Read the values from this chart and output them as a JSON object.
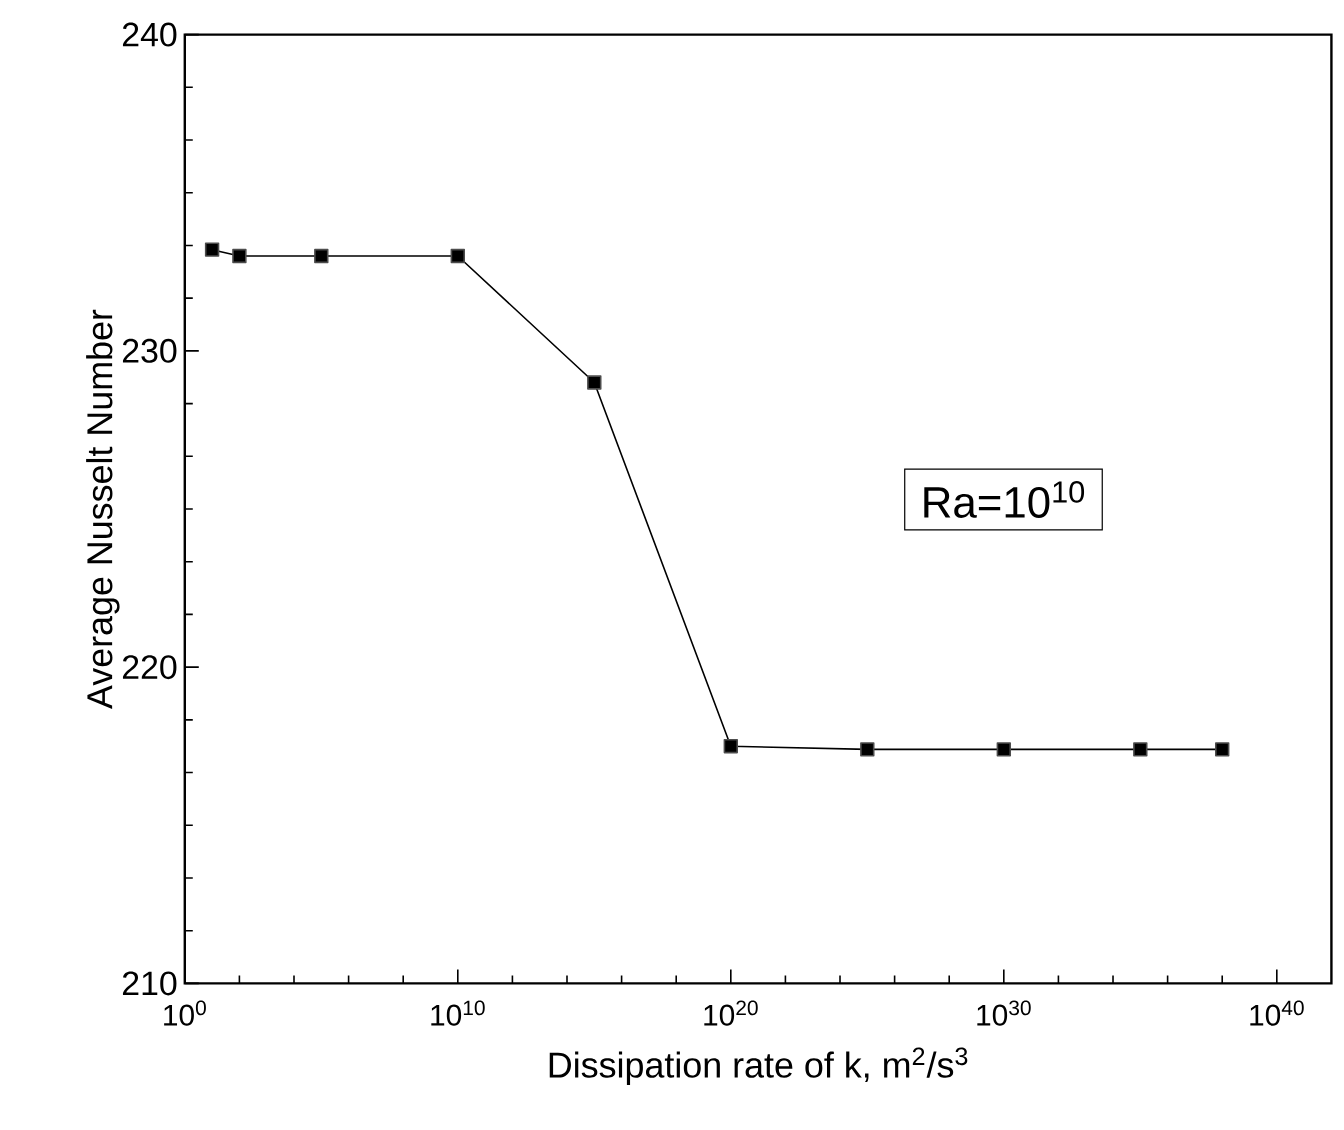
{
  "chart_data": {
    "type": "line",
    "xlabel": "Dissipation rate of k, m$^{2}$/s$^{3}$",
    "ylabel": "Average Nusselt Number",
    "x": [
      10.0,
      100.0,
      100000.0,
      10000000000.0,
      1000000000000000.0,
      1e+20,
      1e+25,
      1e+30,
      1e+35,
      1e+38
    ],
    "series": [
      {
        "color": "#000000",
        "values": [
          233.2,
          233.0,
          233.0,
          233.0,
          229.0,
          217.5,
          217.4,
          217.4,
          217.4,
          217.4
        ]
      }
    ],
    "log": "x",
    "xlim": [
      1,
      1e+42
    ],
    "ylim": [
      210,
      240
    ],
    "xticks": [
      {
        "value": 1,
        "label": "10$^{0}$"
      },
      {
        "value": 10000000000.0,
        "label": "10$^{10}$"
      },
      {
        "value": 1e+20,
        "label": "10$^{20}$"
      },
      {
        "value": 1e+30,
        "label": "10$^{30}$"
      },
      {
        "value": 1e+40,
        "label": "10$^{40}$"
      }
    ],
    "yticks": [
      210,
      220,
      230,
      240
    ],
    "marker": "square",
    "line_style": "solid",
    "grid": false,
    "annotations": [
      "Ra=10$^{10}$"
    ]
  }
}
